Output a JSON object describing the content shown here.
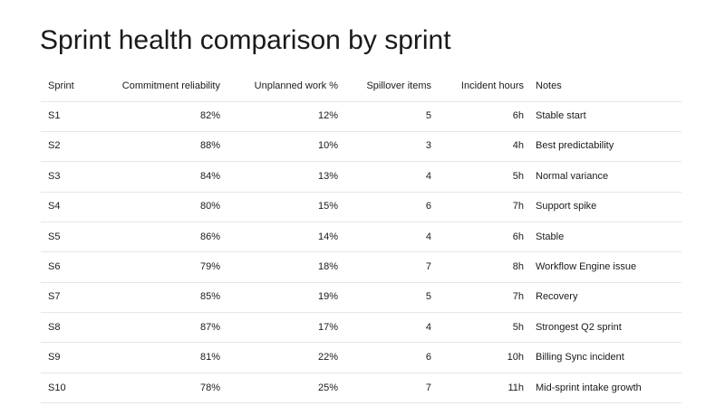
{
  "title": "Sprint health comparison by sprint",
  "table": {
    "header": [
      "Sprint",
      "Commitment reliability",
      "Unplanned work %",
      "Spillover items",
      "Incident hours",
      "Notes"
    ],
    "rows": [
      [
        "S1",
        "82%",
        "12%",
        "5",
        "6h",
        "Stable start"
      ],
      [
        "S2",
        "88%",
        "10%",
        "3",
        "4h",
        "Best predictability"
      ],
      [
        "S3",
        "84%",
        "13%",
        "4",
        "5h",
        "Normal variance"
      ],
      [
        "S4",
        "80%",
        "15%",
        "6",
        "7h",
        "Support spike"
      ],
      [
        "S5",
        "86%",
        "14%",
        "4",
        "6h",
        "Stable"
      ],
      [
        "S6",
        "79%",
        "18%",
        "7",
        "8h",
        "Workflow Engine issue"
      ],
      [
        "S7",
        "85%",
        "19%",
        "5",
        "7h",
        "Recovery"
      ],
      [
        "S8",
        "87%",
        "17%",
        "4",
        "5h",
        "Strongest Q2 sprint"
      ],
      [
        "S9",
        "81%",
        "22%",
        "6",
        "10h",
        "Billing Sync incident"
      ],
      [
        "S10",
        "78%",
        "25%",
        "7",
        "11h",
        "Mid-sprint intake growth"
      ]
    ]
  }
}
